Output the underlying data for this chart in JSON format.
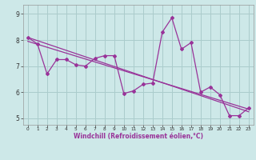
{
  "xlabel": "Windchill (Refroidissement éolien,°C)",
  "background_color": "#cde8e8",
  "grid_color": "#aacccc",
  "line_color": "#993399",
  "xlim": [
    -0.5,
    23.5
  ],
  "ylim": [
    4.75,
    9.35
  ],
  "xticks": [
    0,
    1,
    2,
    3,
    4,
    5,
    6,
    7,
    8,
    9,
    10,
    11,
    12,
    13,
    14,
    15,
    16,
    17,
    18,
    19,
    20,
    21,
    22,
    23
  ],
  "yticks": [
    5,
    6,
    7,
    8,
    9
  ],
  "line1_x": [
    0,
    1,
    2,
    3,
    4,
    5,
    6,
    7,
    8,
    9,
    10,
    11,
    12,
    13,
    14,
    15,
    16,
    17,
    18,
    19,
    20,
    21,
    22,
    23
  ],
  "line1_y": [
    8.1,
    7.85,
    6.7,
    7.25,
    7.25,
    7.05,
    7.0,
    7.3,
    7.4,
    7.4,
    5.95,
    6.05,
    6.3,
    6.35,
    8.3,
    8.85,
    7.65,
    7.9,
    6.0,
    6.2,
    5.9,
    5.1,
    5.1,
    5.4
  ],
  "line2_x": [
    0,
    23
  ],
  "line2_y": [
    8.1,
    5.25
  ],
  "line3_x": [
    0,
    23
  ],
  "line3_y": [
    7.95,
    5.35
  ]
}
